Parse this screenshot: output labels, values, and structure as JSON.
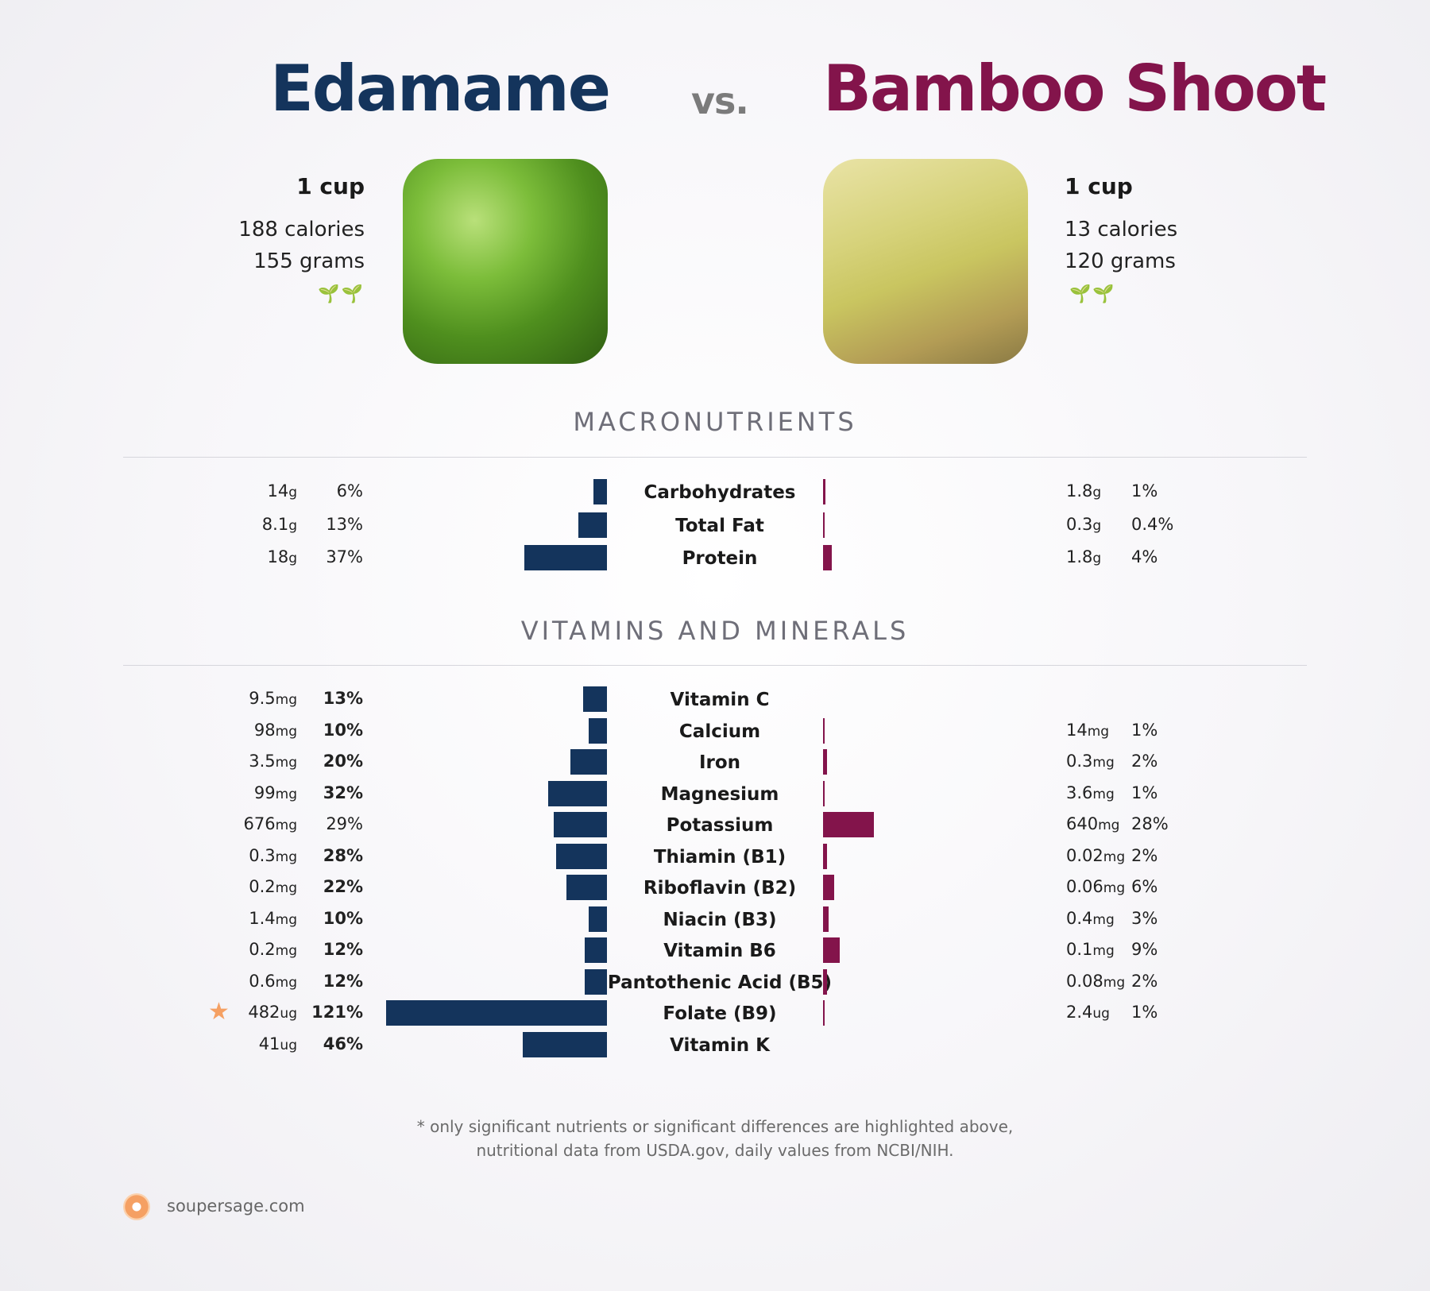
{
  "food_a": {
    "name": "Edamame",
    "serving": "1 cup",
    "calories": "188 calories",
    "grams": "155 grams",
    "icon": "sprout-icon",
    "color": "#14345c"
  },
  "vs": "vs.",
  "food_b": {
    "name": "Bamboo Shoot",
    "serving": "1 cup",
    "calories": "13 calories",
    "grams": "120 grams",
    "icon": "sprout-icon",
    "color": "#83144b"
  },
  "sections": {
    "macro_title": "MACRONUTRIENTS",
    "vitamins_title": "VITAMINS AND MINERALS"
  },
  "chart_data": {
    "type": "bar",
    "orientation": "horizontal-butterfly",
    "series": [
      {
        "name": "Edamame",
        "color": "#14345c"
      },
      {
        "name": "Bamboo Shoot",
        "color": "#83144b"
      }
    ],
    "macronutrients": [
      {
        "name": "Carbohydrates",
        "a_amt": "14",
        "a_unit": "g",
        "a_pct": "6%",
        "a_val": 6,
        "a_bold": false,
        "b_amt": "1.8",
        "b_unit": "g",
        "b_pct": "1%",
        "b_val": 1,
        "b_bold": false
      },
      {
        "name": "Total Fat",
        "a_amt": "8.1",
        "a_unit": "g",
        "a_pct": "13%",
        "a_val": 13,
        "a_bold": false,
        "b_amt": "0.3",
        "b_unit": "g",
        "b_pct": "0.4%",
        "b_val": 0.4,
        "b_bold": false
      },
      {
        "name": "Protein",
        "a_amt": "18",
        "a_unit": "g",
        "a_pct": "37%",
        "a_val": 37,
        "a_bold": false,
        "b_amt": "1.8",
        "b_unit": "g",
        "b_pct": "4%",
        "b_val": 4,
        "b_bold": false
      }
    ],
    "vitamins": [
      {
        "name": "Vitamin C",
        "a_amt": "9.5",
        "a_unit": "mg",
        "a_pct": "13%",
        "a_val": 13,
        "a_bold": true,
        "b_amt": "",
        "b_unit": "",
        "b_pct": "",
        "b_val": 0,
        "b_bold": false
      },
      {
        "name": "Calcium",
        "a_amt": "98",
        "a_unit": "mg",
        "a_pct": "10%",
        "a_val": 10,
        "a_bold": true,
        "b_amt": "14",
        "b_unit": "mg",
        "b_pct": "1%",
        "b_val": 1,
        "b_bold": false
      },
      {
        "name": "Iron",
        "a_amt": "3.5",
        "a_unit": "mg",
        "a_pct": "20%",
        "a_val": 20,
        "a_bold": true,
        "b_amt": "0.3",
        "b_unit": "mg",
        "b_pct": "2%",
        "b_val": 2,
        "b_bold": false
      },
      {
        "name": "Magnesium",
        "a_amt": "99",
        "a_unit": "mg",
        "a_pct": "32%",
        "a_val": 32,
        "a_bold": true,
        "b_amt": "3.6",
        "b_unit": "mg",
        "b_pct": "1%",
        "b_val": 1,
        "b_bold": false
      },
      {
        "name": "Potassium",
        "a_amt": "676",
        "a_unit": "mg",
        "a_pct": "29%",
        "a_val": 29,
        "a_bold": false,
        "b_amt": "640",
        "b_unit": "mg",
        "b_pct": "28%",
        "b_val": 28,
        "b_bold": false
      },
      {
        "name": "Thiamin (B1)",
        "a_amt": "0.3",
        "a_unit": "mg",
        "a_pct": "28%",
        "a_val": 28,
        "a_bold": true,
        "b_amt": "0.02",
        "b_unit": "mg",
        "b_pct": "2%",
        "b_val": 2,
        "b_bold": false
      },
      {
        "name": "Riboflavin (B2)",
        "a_amt": "0.2",
        "a_unit": "mg",
        "a_pct": "22%",
        "a_val": 22,
        "a_bold": true,
        "b_amt": "0.06",
        "b_unit": "mg",
        "b_pct": "6%",
        "b_val": 6,
        "b_bold": false
      },
      {
        "name": "Niacin (B3)",
        "a_amt": "1.4",
        "a_unit": "mg",
        "a_pct": "10%",
        "a_val": 10,
        "a_bold": true,
        "b_amt": "0.4",
        "b_unit": "mg",
        "b_pct": "3%",
        "b_val": 3,
        "b_bold": false
      },
      {
        "name": "Vitamin B6",
        "a_amt": "0.2",
        "a_unit": "mg",
        "a_pct": "12%",
        "a_val": 12,
        "a_bold": true,
        "b_amt": "0.1",
        "b_unit": "mg",
        "b_pct": "9%",
        "b_val": 9,
        "b_bold": false
      },
      {
        "name": "Pantothenic Acid (B5)",
        "a_amt": "0.6",
        "a_unit": "mg",
        "a_pct": "12%",
        "a_val": 12,
        "a_bold": true,
        "b_amt": "0.08",
        "b_unit": "mg",
        "b_pct": "2%",
        "b_val": 2,
        "b_bold": false
      },
      {
        "name": "Folate (B9)",
        "a_amt": "482",
        "a_unit": "ug",
        "a_pct": "121%",
        "a_val": 121,
        "a_bold": true,
        "a_star": true,
        "b_amt": "2.4",
        "b_unit": "ug",
        "b_pct": "1%",
        "b_val": 1,
        "b_bold": false
      },
      {
        "name": "Vitamin K",
        "a_amt": "41",
        "a_unit": "ug",
        "a_pct": "46%",
        "a_val": 46,
        "a_bold": true,
        "b_amt": "",
        "b_unit": "",
        "b_pct": "",
        "b_val": 0,
        "b_bold": false
      }
    ]
  },
  "footnote": {
    "line1": "* only significant nutrients or significant differences are highlighted above,",
    "line2": "nutritional data from USDA.gov, daily values from NCBI/NIH."
  },
  "brand": {
    "text": "soupersage.com",
    "icon": "soup-logo-icon",
    "color": "#f5a063"
  }
}
